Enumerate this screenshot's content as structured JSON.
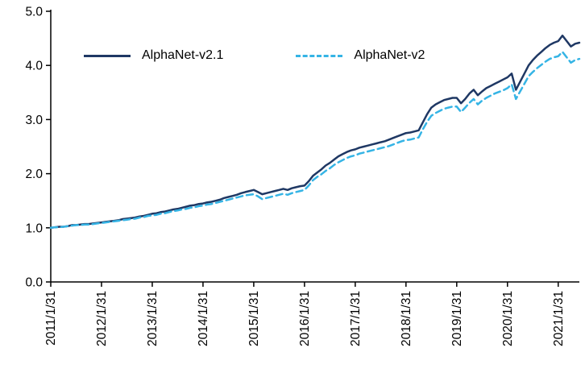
{
  "colors": {
    "series1": "#1F3864",
    "series2": "#35B4E5",
    "axis": "#000000",
    "background": "#FFFFFF"
  },
  "chart_data": {
    "type": "line",
    "title": "",
    "xlabel": "",
    "ylabel": "",
    "grid": false,
    "legend_position": "upper-left",
    "ylim": [
      0.0,
      5.0
    ],
    "y_tick_labels": [
      "0.0",
      "1.0",
      "2.0",
      "3.0",
      "4.0",
      "5.0"
    ],
    "x_tick_labels": [
      "2011/1/31",
      "2012/1/31",
      "2013/1/31",
      "2014/1/31",
      "2015/1/31",
      "2016/1/31",
      "2017/1/31",
      "2018/1/31",
      "2019/1/31",
      "2020/1/31",
      "2021/1/31"
    ],
    "x_unit": "month",
    "x_ticks_every_n_points": 12,
    "series": [
      {
        "name": "AlphaNet-v2.1",
        "color": "#1F3864",
        "style": "solid",
        "values": [
          1.0,
          1.01,
          1.02,
          1.02,
          1.03,
          1.05,
          1.05,
          1.06,
          1.07,
          1.07,
          1.08,
          1.09,
          1.1,
          1.11,
          1.12,
          1.13,
          1.14,
          1.16,
          1.17,
          1.18,
          1.19,
          1.21,
          1.22,
          1.24,
          1.26,
          1.27,
          1.29,
          1.3,
          1.32,
          1.34,
          1.35,
          1.37,
          1.39,
          1.41,
          1.42,
          1.44,
          1.45,
          1.47,
          1.48,
          1.5,
          1.52,
          1.55,
          1.57,
          1.59,
          1.61,
          1.64,
          1.66,
          1.68,
          1.7,
          1.66,
          1.62,
          1.64,
          1.66,
          1.68,
          1.7,
          1.72,
          1.7,
          1.73,
          1.75,
          1.77,
          1.78,
          1.86,
          1.96,
          2.02,
          2.08,
          2.15,
          2.2,
          2.26,
          2.32,
          2.36,
          2.4,
          2.43,
          2.45,
          2.48,
          2.5,
          2.52,
          2.54,
          2.56,
          2.58,
          2.6,
          2.63,
          2.66,
          2.69,
          2.72,
          2.75,
          2.76,
          2.78,
          2.8,
          2.95,
          3.1,
          3.22,
          3.28,
          3.32,
          3.36,
          3.38,
          3.4,
          3.4,
          3.3,
          3.38,
          3.48,
          3.55,
          3.45,
          3.52,
          3.58,
          3.62,
          3.66,
          3.7,
          3.74,
          3.78,
          3.85,
          3.55,
          3.7,
          3.85,
          4.0,
          4.1,
          4.18,
          4.25,
          4.32,
          4.38,
          4.42,
          4.45,
          4.55,
          4.45,
          4.35,
          4.4,
          4.42
        ]
      },
      {
        "name": "AlphaNet-v2",
        "color": "#35B4E5",
        "style": "dashed",
        "values": [
          1.0,
          1.01,
          1.01,
          1.02,
          1.03,
          1.04,
          1.05,
          1.05,
          1.06,
          1.06,
          1.07,
          1.08,
          1.09,
          1.1,
          1.11,
          1.12,
          1.13,
          1.14,
          1.15,
          1.16,
          1.17,
          1.19,
          1.2,
          1.22,
          1.23,
          1.24,
          1.26,
          1.27,
          1.29,
          1.31,
          1.32,
          1.34,
          1.35,
          1.37,
          1.38,
          1.4,
          1.41,
          1.43,
          1.44,
          1.46,
          1.48,
          1.5,
          1.52,
          1.54,
          1.56,
          1.58,
          1.6,
          1.61,
          1.62,
          1.58,
          1.53,
          1.55,
          1.57,
          1.59,
          1.61,
          1.63,
          1.61,
          1.64,
          1.66,
          1.68,
          1.7,
          1.78,
          1.88,
          1.94,
          1.99,
          2.05,
          2.1,
          2.16,
          2.21,
          2.25,
          2.29,
          2.32,
          2.34,
          2.37,
          2.39,
          2.41,
          2.43,
          2.45,
          2.47,
          2.49,
          2.51,
          2.54,
          2.57,
          2.6,
          2.62,
          2.63,
          2.65,
          2.67,
          2.82,
          2.96,
          3.07,
          3.12,
          3.16,
          3.2,
          3.22,
          3.24,
          3.24,
          3.14,
          3.22,
          3.31,
          3.38,
          3.28,
          3.35,
          3.4,
          3.44,
          3.48,
          3.51,
          3.54,
          3.58,
          3.65,
          3.38,
          3.52,
          3.66,
          3.8,
          3.88,
          3.95,
          4.01,
          4.07,
          4.12,
          4.15,
          4.17,
          4.25,
          4.15,
          4.05,
          4.1,
          4.12
        ]
      }
    ]
  },
  "legend": {
    "series1_label": "AlphaNet-v2.1",
    "series2_label": "AlphaNet-v2"
  }
}
